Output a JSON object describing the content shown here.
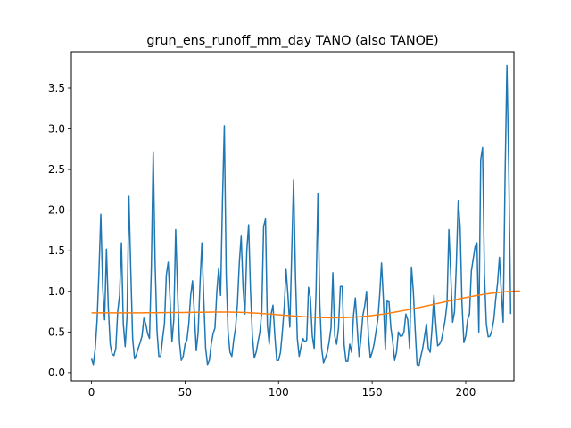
{
  "chart_data": {
    "type": "line",
    "title": "grun_ens_runoff_mm_day TANO (also TANOE)",
    "xlabel": "",
    "ylabel": "",
    "xlim": [
      -10.75,
      225.75
    ],
    "ylim": [
      -0.1,
      3.95
    ],
    "x_ticks": [
      0,
      50,
      100,
      150,
      200
    ],
    "x_tick_labels": [
      "0",
      "50",
      "100",
      "150",
      "200"
    ],
    "y_ticks": [
      0.0,
      0.5,
      1.0,
      1.5,
      2.0,
      2.5,
      3.0,
      3.5
    ],
    "y_tick_labels": [
      "0.0",
      "0.5",
      "1.0",
      "1.5",
      "2.0",
      "2.5",
      "3.0",
      "3.5"
    ],
    "grid": false,
    "legend": "none",
    "colors": {
      "series_1": "#1f77b4",
      "series_2": "#ff7f0e"
    },
    "series": [
      {
        "values": [
          0.17,
          0.1,
          0.3,
          0.65,
          1.25,
          1.95,
          1.05,
          0.65,
          1.52,
          0.8,
          0.35,
          0.23,
          0.21,
          0.3,
          0.75,
          0.95,
          1.6,
          0.6,
          0.32,
          0.7,
          2.17,
          1.25,
          0.42,
          0.17,
          0.22,
          0.3,
          0.37,
          0.45,
          0.67,
          0.6,
          0.48,
          0.42,
          1.3,
          2.72,
          1.35,
          0.52,
          0.2,
          0.2,
          0.42,
          0.6,
          1.2,
          1.36,
          0.9,
          0.38,
          0.65,
          1.76,
          1.0,
          0.38,
          0.15,
          0.2,
          0.35,
          0.4,
          0.6,
          0.95,
          1.13,
          0.72,
          0.27,
          0.5,
          1.1,
          1.6,
          0.9,
          0.3,
          0.1,
          0.15,
          0.35,
          0.48,
          0.55,
          1.0,
          1.29,
          0.95,
          2.1,
          3.04,
          1.2,
          0.5,
          0.25,
          0.2,
          0.4,
          0.55,
          0.85,
          1.35,
          1.68,
          1.05,
          0.72,
          1.5,
          1.82,
          1.0,
          0.45,
          0.18,
          0.25,
          0.38,
          0.5,
          0.75,
          1.8,
          1.89,
          0.58,
          0.35,
          0.72,
          0.83,
          0.45,
          0.15,
          0.15,
          0.25,
          0.5,
          0.8,
          1.27,
          0.95,
          0.56,
          1.47,
          2.37,
          1.2,
          0.42,
          0.2,
          0.32,
          0.42,
          0.38,
          0.4,
          1.05,
          0.92,
          0.45,
          0.3,
          1.0,
          2.2,
          0.85,
          0.3,
          0.12,
          0.18,
          0.25,
          0.38,
          0.55,
          1.23,
          0.45,
          0.35,
          0.55,
          1.06,
          1.06,
          0.35,
          0.14,
          0.14,
          0.35,
          0.25,
          0.7,
          0.92,
          0.55,
          0.2,
          0.42,
          0.7,
          0.82,
          1.0,
          0.45,
          0.18,
          0.25,
          0.35,
          0.5,
          0.65,
          0.95,
          1.35,
          0.9,
          0.28,
          0.88,
          0.87,
          0.55,
          0.38,
          0.15,
          0.25,
          0.5,
          0.45,
          0.45,
          0.5,
          0.72,
          0.65,
          0.3,
          1.3,
          1.0,
          0.52,
          0.1,
          0.08,
          0.2,
          0.3,
          0.45,
          0.6,
          0.3,
          0.25,
          0.55,
          0.95,
          0.6,
          0.33,
          0.35,
          0.4,
          0.52,
          0.65,
          0.85,
          1.76,
          1.2,
          0.62,
          0.75,
          1.35,
          2.12,
          1.8,
          0.85,
          0.37,
          0.45,
          0.65,
          0.72,
          1.25,
          1.4,
          1.55,
          1.6,
          0.5,
          2.62,
          2.77,
          1.2,
          0.6,
          0.44,
          0.45,
          0.52,
          0.65,
          0.9,
          1.1,
          1.42,
          1.0,
          0.62,
          2.4,
          3.78,
          2.5,
          0.72
        ]
      },
      {
        "values": [
          0.735,
          0.735,
          0.735,
          0.735,
          0.735,
          0.735,
          0.735,
          0.735,
          0.735,
          0.735,
          0.735,
          0.735,
          0.735,
          0.735,
          0.735,
          0.735,
          0.736,
          0.736,
          0.736,
          0.736,
          0.736,
          0.736,
          0.736,
          0.736,
          0.736,
          0.736,
          0.736,
          0.736,
          0.737,
          0.737,
          0.737,
          0.737,
          0.737,
          0.737,
          0.737,
          0.737,
          0.738,
          0.738,
          0.738,
          0.738,
          0.738,
          0.739,
          0.739,
          0.739,
          0.739,
          0.739,
          0.74,
          0.74,
          0.74,
          0.74,
          0.741,
          0.741,
          0.741,
          0.741,
          0.742,
          0.742,
          0.742,
          0.743,
          0.743,
          0.743,
          0.744,
          0.744,
          0.744,
          0.744,
          0.745,
          0.745,
          0.745,
          0.745,
          0.745,
          0.745,
          0.745,
          0.745,
          0.745,
          0.745,
          0.745,
          0.744,
          0.744,
          0.743,
          0.743,
          0.742,
          0.741,
          0.741,
          0.74,
          0.739,
          0.737,
          0.736,
          0.735,
          0.734,
          0.732,
          0.731,
          0.729,
          0.728,
          0.726,
          0.724,
          0.723,
          0.721,
          0.719,
          0.717,
          0.716,
          0.714,
          0.712,
          0.71,
          0.708,
          0.706,
          0.705,
          0.703,
          0.701,
          0.699,
          0.697,
          0.696,
          0.694,
          0.692,
          0.691,
          0.689,
          0.688,
          0.686,
          0.685,
          0.684,
          0.682,
          0.681,
          0.68,
          0.679,
          0.678,
          0.677,
          0.677,
          0.676,
          0.676,
          0.675,
          0.675,
          0.675,
          0.675,
          0.675,
          0.675,
          0.676,
          0.676,
          0.677,
          0.678,
          0.679,
          0.68,
          0.681,
          0.682,
          0.684,
          0.685,
          0.687,
          0.689,
          0.691,
          0.693,
          0.695,
          0.698,
          0.7,
          0.703,
          0.706,
          0.709,
          0.712,
          0.715,
          0.718,
          0.721,
          0.725,
          0.728,
          0.732,
          0.736,
          0.74,
          0.744,
          0.748,
          0.752,
          0.756,
          0.76,
          0.765,
          0.769,
          0.773,
          0.778,
          0.783,
          0.787,
          0.792,
          0.797,
          0.802,
          0.806,
          0.811,
          0.816,
          0.821,
          0.826,
          0.831,
          0.836,
          0.841,
          0.846,
          0.851,
          0.856,
          0.861,
          0.866,
          0.871,
          0.876,
          0.881,
          0.886,
          0.891,
          0.896,
          0.9,
          0.905,
          0.91,
          0.915,
          0.919,
          0.924,
          0.928,
          0.933,
          0.937,
          0.941,
          0.945,
          0.949,
          0.953,
          0.957,
          0.961,
          0.964,
          0.968,
          0.971,
          0.974,
          0.977,
          0.98,
          0.983,
          0.986,
          0.988,
          0.991,
          0.993,
          0.995,
          0.997,
          0.998,
          1.0,
          1.001,
          1.002,
          1.003,
          1.004,
          1.005
        ]
      }
    ]
  }
}
